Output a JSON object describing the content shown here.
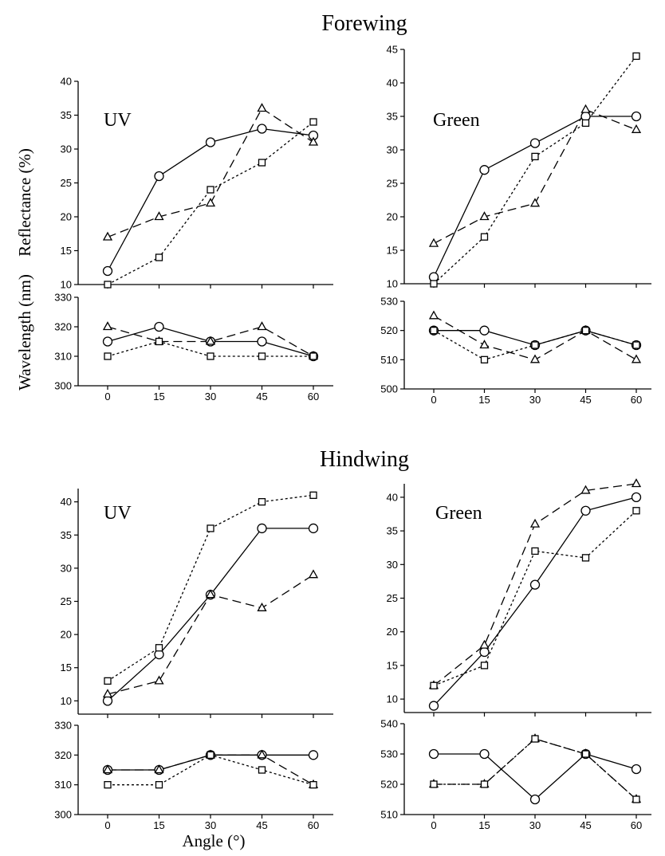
{
  "figure": {
    "sections": [
      {
        "title": "Forewing"
      },
      {
        "title": "Hindwing"
      }
    ],
    "y_titles": {
      "reflectance": "Reflectance (%)",
      "wavelength": "Wavelength (nm)"
    },
    "x_title": "Angle (°)"
  },
  "chart_data": [
    {
      "type": "line",
      "section": "Forewing",
      "panel": "UV",
      "xlabel": "",
      "ylabel": "Reflectance (%)",
      "x": [
        0,
        15,
        30,
        45,
        60
      ],
      "ylim": [
        10,
        40
      ],
      "yticks": [
        10,
        15,
        20,
        25,
        30,
        35,
        40
      ],
      "series": [
        {
          "marker": "circle",
          "dash": "solid",
          "values": [
            12,
            26,
            31,
            33,
            32
          ]
        },
        {
          "marker": "triangle",
          "dash": "long-dash",
          "values": [
            17,
            20,
            22,
            36,
            31
          ]
        },
        {
          "marker": "square",
          "dash": "dotted",
          "values": [
            10,
            14,
            24,
            28,
            34
          ]
        }
      ]
    },
    {
      "type": "line",
      "section": "Forewing",
      "panel": "UV",
      "xlabel": "",
      "ylabel": "Wavelength (nm)",
      "x": [
        0,
        15,
        30,
        45,
        60
      ],
      "xticks": [
        0,
        15,
        30,
        45,
        60
      ],
      "ylim": [
        300,
        330
      ],
      "yticks": [
        300,
        310,
        320,
        330
      ],
      "series": [
        {
          "marker": "circle",
          "dash": "solid",
          "values": [
            315,
            320,
            315,
            315,
            310
          ]
        },
        {
          "marker": "triangle",
          "dash": "long-dash",
          "values": [
            320,
            315,
            315,
            320,
            310
          ]
        },
        {
          "marker": "square",
          "dash": "dotted",
          "values": [
            310,
            315,
            310,
            310,
            310
          ]
        }
      ]
    },
    {
      "type": "line",
      "section": "Forewing",
      "panel": "Green",
      "xlabel": "",
      "ylabel": "",
      "x": [
        0,
        15,
        30,
        45,
        60
      ],
      "ylim": [
        10,
        45
      ],
      "yticks": [
        10,
        15,
        20,
        25,
        30,
        35,
        40,
        45
      ],
      "series": [
        {
          "marker": "circle",
          "dash": "solid",
          "values": [
            11,
            27,
            31,
            35,
            35
          ]
        },
        {
          "marker": "triangle",
          "dash": "long-dash",
          "values": [
            16,
            20,
            22,
            36,
            33
          ]
        },
        {
          "marker": "square",
          "dash": "dotted",
          "values": [
            10,
            17,
            29,
            34,
            44
          ]
        }
      ]
    },
    {
      "type": "line",
      "section": "Forewing",
      "panel": "Green",
      "xlabel": "",
      "ylabel": "",
      "x": [
        0,
        15,
        30,
        45,
        60
      ],
      "xticks": [
        0,
        15,
        30,
        45,
        60
      ],
      "ylim": [
        500,
        530
      ],
      "yticks": [
        500,
        510,
        520,
        530
      ],
      "series": [
        {
          "marker": "circle",
          "dash": "solid",
          "values": [
            520,
            520,
            515,
            520,
            515
          ]
        },
        {
          "marker": "triangle",
          "dash": "long-dash",
          "values": [
            525,
            515,
            510,
            520,
            510
          ]
        },
        {
          "marker": "square",
          "dash": "dotted",
          "values": [
            520,
            510,
            515,
            520,
            515
          ]
        }
      ]
    },
    {
      "type": "line",
      "section": "Hindwing",
      "panel": "UV",
      "xlabel": "",
      "ylabel": "",
      "x": [
        0,
        15,
        30,
        45,
        60
      ],
      "ylim": [
        8,
        42
      ],
      "yticks": [
        10,
        15,
        20,
        25,
        30,
        35,
        40
      ],
      "series": [
        {
          "marker": "circle",
          "dash": "solid",
          "values": [
            10,
            17,
            26,
            36,
            36
          ]
        },
        {
          "marker": "triangle",
          "dash": "long-dash",
          "values": [
            11,
            13,
            26,
            24,
            29
          ]
        },
        {
          "marker": "square",
          "dash": "dotted",
          "values": [
            13,
            18,
            36,
            40,
            41
          ]
        }
      ]
    },
    {
      "type": "line",
      "section": "Hindwing",
      "panel": "UV",
      "xlabel": "Angle (°)",
      "ylabel": "",
      "x": [
        0,
        15,
        30,
        45,
        60
      ],
      "xticks": [
        0,
        15,
        30,
        45,
        60
      ],
      "ylim": [
        300,
        330
      ],
      "yticks": [
        300,
        310,
        320,
        330
      ],
      "series": [
        {
          "marker": "circle",
          "dash": "solid",
          "values": [
            315,
            315,
            320,
            320,
            320
          ]
        },
        {
          "marker": "triangle",
          "dash": "long-dash",
          "values": [
            315,
            315,
            320,
            320,
            310
          ]
        },
        {
          "marker": "square",
          "dash": "dotted",
          "values": [
            310,
            310,
            320,
            315,
            310
          ]
        }
      ]
    },
    {
      "type": "line",
      "section": "Hindwing",
      "panel": "Green",
      "xlabel": "",
      "ylabel": "",
      "x": [
        0,
        15,
        30,
        45,
        60
      ],
      "ylim": [
        8,
        42
      ],
      "yticks": [
        10,
        15,
        20,
        25,
        30,
        35,
        40
      ],
      "series": [
        {
          "marker": "circle",
          "dash": "solid",
          "values": [
            9,
            17,
            27,
            38,
            40
          ]
        },
        {
          "marker": "triangle",
          "dash": "long-dash",
          "values": [
            12,
            18,
            36,
            41,
            42
          ]
        },
        {
          "marker": "square",
          "dash": "dotted",
          "values": [
            12,
            15,
            32,
            31,
            38
          ]
        }
      ]
    },
    {
      "type": "line",
      "section": "Hindwing",
      "panel": "Green",
      "xlabel": "",
      "ylabel": "",
      "x": [
        0,
        15,
        30,
        45,
        60
      ],
      "xticks": [
        0,
        15,
        30,
        45,
        60
      ],
      "ylim": [
        510,
        540
      ],
      "yticks": [
        510,
        520,
        530,
        540
      ],
      "series": [
        {
          "marker": "circle",
          "dash": "solid",
          "values": [
            530,
            530,
            515,
            530,
            525
          ]
        },
        {
          "marker": "triangle",
          "dash": "long-dash",
          "values": [
            520,
            520,
            535,
            530,
            515
          ]
        },
        {
          "marker": "square",
          "dash": "dotted",
          "values": [
            520,
            520,
            535,
            530,
            515
          ]
        }
      ]
    }
  ]
}
